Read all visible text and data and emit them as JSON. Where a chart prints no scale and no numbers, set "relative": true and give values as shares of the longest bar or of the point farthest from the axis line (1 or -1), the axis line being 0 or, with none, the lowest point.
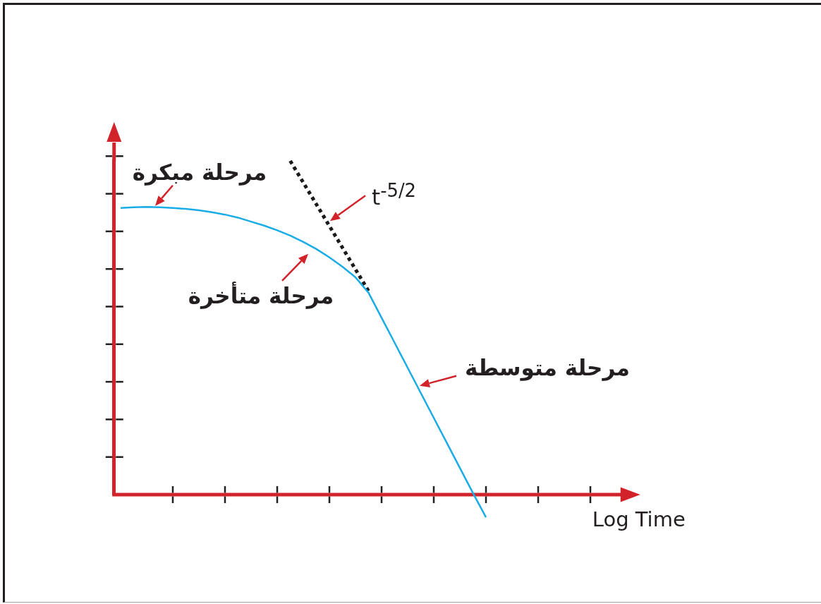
{
  "chart_data": {
    "type": "line",
    "xlabel": "Log Time",
    "relative": true,
    "grid": false,
    "legend": false,
    "marker": "none",
    "categories": [
      null,
      null,
      null,
      null,
      null,
      null,
      null,
      null,
      null,
      null,
      null,
      null,
      null,
      null,
      null,
      null,
      null,
      null,
      null,
      null,
      null,
      null,
      null,
      null,
      null,
      null,
      null,
      null,
      null,
      null,
      null,
      null,
      null,
      null,
      null,
      null,
      null,
      null,
      null,
      null
    ],
    "series": [
      {
        "color": "#1aace6",
        "values": [
          0.859,
          0.861,
          0.862,
          0.861,
          0.859,
          0.856,
          0.852,
          0.846,
          0.839,
          0.83,
          0.818,
          0.806,
          0.792,
          0.776,
          0.757,
          0.736,
          0.711,
          0.683,
          0.651,
          0.605,
          0.53,
          0.455,
          0.38,
          0.305,
          0.23,
          0.155,
          0.08,
          0.005,
          -0.068,
          null,
          null,
          null,
          null,
          null,
          null,
          null,
          null,
          null,
          null,
          null
        ]
      },
      {
        "color": "#1a1a1a",
        "line_style": "dotted",
        "values": [
          null,
          null,
          null,
          null,
          null,
          null,
          null,
          null,
          null,
          null,
          null,
          null,
          null,
          1.0,
          0.935,
          0.87,
          0.805,
          0.74,
          0.675,
          0.61,
          null,
          null,
          null,
          null,
          null,
          null,
          null,
          null,
          null,
          null,
          null,
          null,
          null,
          null,
          null,
          null,
          null,
          null,
          null,
          null
        ]
      }
    ],
    "ref_lines": [
      {
        "axis": "y",
        "value": 0,
        "color": "#d2232a"
      }
    ],
    "annotations": [
      "مرحلة مبكرة",
      "t$^{-5/2}$",
      "مرحلة متأخرة",
      "مرحلة متوسطة"
    ]
  }
}
